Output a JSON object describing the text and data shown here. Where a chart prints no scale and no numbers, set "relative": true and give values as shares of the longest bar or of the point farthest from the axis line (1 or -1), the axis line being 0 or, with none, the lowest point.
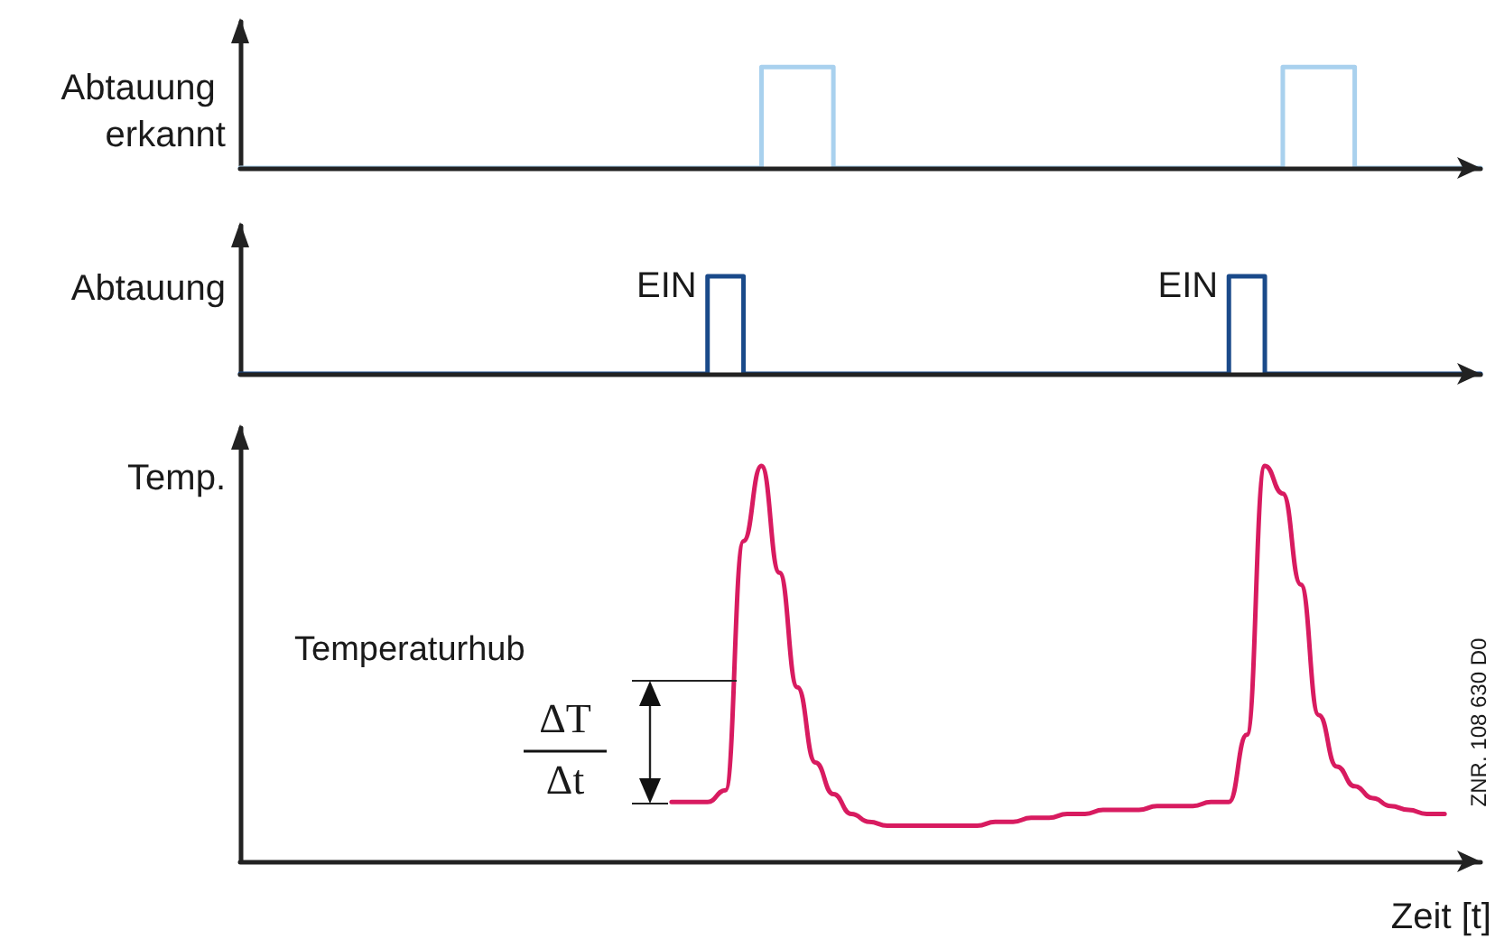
{
  "chart_data": [
    {
      "type": "step",
      "ylabel": "Abtauung erkannt",
      "relative": true,
      "grid": false,
      "marker": "none",
      "categories": [
        null,
        null,
        null,
        null,
        null,
        null,
        null,
        null,
        null,
        null,
        null,
        null,
        null,
        null,
        null,
        null,
        null,
        null,
        null,
        null,
        null,
        null,
        null,
        null,
        null,
        null,
        null,
        null,
        null,
        null,
        null,
        null,
        null,
        null,
        null,
        null,
        null,
        null,
        null,
        null,
        null,
        null,
        null,
        null,
        null,
        null,
        null,
        null,
        null,
        null,
        null,
        null,
        null,
        null,
        null,
        null,
        null,
        null,
        null,
        null,
        null,
        null,
        null,
        null,
        null,
        null,
        null,
        null,
        null,
        null
      ],
      "series": [
        {
          "color": "#a9d1ee",
          "values": [
            0,
            0,
            0,
            0,
            0,
            0,
            0,
            0,
            0,
            0,
            0,
            0,
            0,
            0,
            0,
            0,
            0,
            0,
            0,
            0,
            0,
            0,
            0,
            0,
            0,
            0,
            0,
            0,
            0,
            1,
            1,
            1,
            1,
            0,
            0,
            0,
            0,
            0,
            0,
            0,
            0,
            0,
            0,
            0,
            0,
            0,
            0,
            0,
            0,
            0,
            0,
            0,
            0,
            0,
            0,
            0,
            0,
            0,
            1,
            1,
            1,
            1,
            0,
            0,
            0,
            0,
            0,
            0,
            0,
            0
          ]
        }
      ]
    },
    {
      "type": "step",
      "ylabel": "Abtauung",
      "relative": true,
      "grid": false,
      "marker": "none",
      "annotations": [
        "EIN",
        "EIN"
      ],
      "categories": [
        null,
        null,
        null,
        null,
        null,
        null,
        null,
        null,
        null,
        null,
        null,
        null,
        null,
        null,
        null,
        null,
        null,
        null,
        null,
        null,
        null,
        null,
        null,
        null,
        null,
        null,
        null,
        null,
        null,
        null,
        null,
        null,
        null,
        null,
        null,
        null,
        null,
        null,
        null,
        null,
        null,
        null,
        null,
        null,
        null,
        null,
        null,
        null,
        null,
        null,
        null,
        null,
        null,
        null,
        null,
        null,
        null,
        null,
        null,
        null,
        null,
        null,
        null,
        null,
        null,
        null,
        null,
        null,
        null,
        null
      ],
      "series": [
        {
          "color": "#1a4a8a",
          "values": [
            0,
            0,
            0,
            0,
            0,
            0,
            0,
            0,
            0,
            0,
            0,
            0,
            0,
            0,
            0,
            0,
            0,
            0,
            0,
            0,
            0,
            0,
            0,
            0,
            0,
            0,
            1,
            1,
            0,
            0,
            0,
            0,
            0,
            0,
            0,
            0,
            0,
            0,
            0,
            0,
            0,
            0,
            0,
            0,
            0,
            0,
            0,
            0,
            0,
            0,
            0,
            0,
            0,
            0,
            0,
            1,
            1,
            0,
            0,
            0,
            0,
            0,
            0,
            0,
            0,
            0,
            0,
            0,
            0,
            0
          ]
        }
      ]
    },
    {
      "type": "line",
      "ylabel": "Temp.",
      "xlabel": "Zeit [t]",
      "relative": true,
      "grid": false,
      "marker": "none",
      "annotations": [
        "Temperaturhub",
        "ΔT",
        "Δt",
        "ZNR. 108 630 D0"
      ],
      "categories": [
        null,
        null,
        null,
        null,
        null,
        null,
        null,
        null,
        null,
        null,
        null,
        null,
        null,
        null,
        null,
        null,
        null,
        null,
        null,
        null,
        null,
        null,
        null,
        null,
        null,
        null,
        null,
        null,
        null,
        null,
        null,
        null,
        null,
        null,
        null,
        null,
        null,
        null,
        null,
        null,
        null,
        null,
        null,
        null,
        null,
        null,
        null,
        null,
        null,
        null,
        null,
        null,
        null,
        null,
        null,
        null,
        null,
        null,
        null,
        null,
        null,
        null,
        null,
        null,
        null,
        null,
        null,
        null,
        null,
        null
      ],
      "series": [
        {
          "color": "#d81b60",
          "values": [
            null,
            null,
            null,
            null,
            null,
            null,
            null,
            null,
            null,
            null,
            null,
            null,
            null,
            null,
            null,
            null,
            null,
            null,
            null,
            null,
            null,
            null,
            null,
            null,
            0.15,
            0.15,
            0.15,
            0.18,
            0.81,
            1.0,
            0.73,
            0.44,
            0.25,
            0.17,
            0.12,
            0.1,
            0.09,
            0.09,
            0.09,
            0.09,
            0.09,
            0.09,
            0.1,
            0.1,
            0.11,
            0.11,
            0.12,
            0.12,
            0.13,
            0.13,
            0.13,
            0.14,
            0.14,
            0.14,
            0.15,
            0.15,
            0.32,
            1.0,
            0.93,
            0.7,
            0.37,
            0.24,
            0.19,
            0.16,
            0.14,
            0.13,
            0.12,
            0.12,
            null,
            null
          ]
        }
      ]
    }
  ]
}
